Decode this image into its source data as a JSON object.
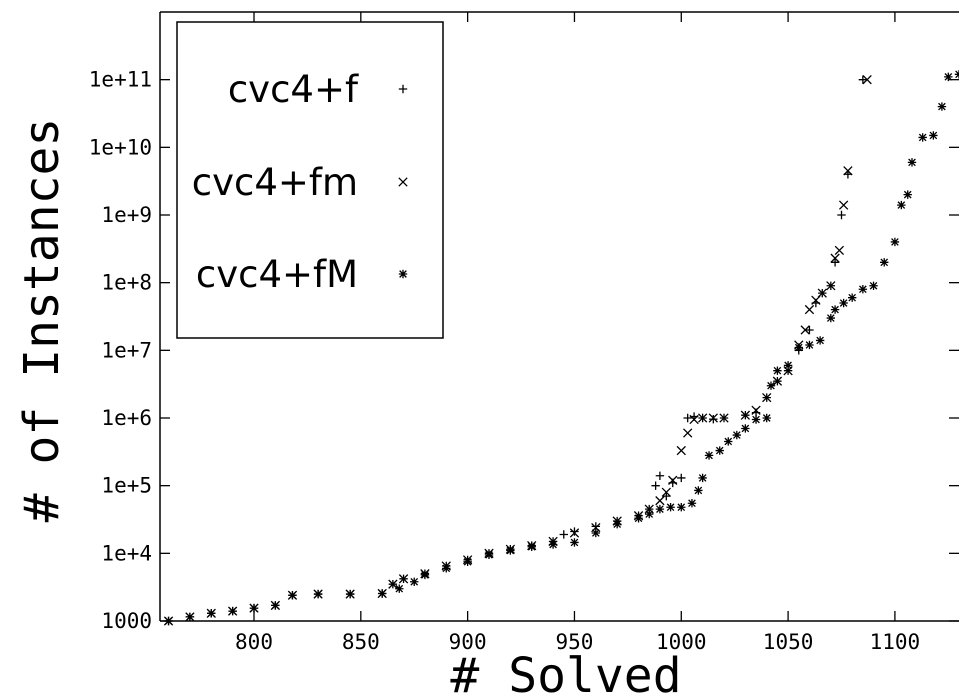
{
  "chart_data": {
    "type": "scatter",
    "title": "",
    "xlabel": "# Solved",
    "ylabel": "# of Instances",
    "xlim": [
      756,
      1130
    ],
    "ylim": [
      1000,
      1000000000000
    ],
    "y_scale": "log",
    "grid": false,
    "legend_position": "top-left",
    "x_ticks": [
      800,
      850,
      900,
      950,
      1000,
      1050,
      1100
    ],
    "y_ticks": [
      {
        "value": 1000,
        "label": "1000"
      },
      {
        "value": 10000,
        "label": "1e+4"
      },
      {
        "value": 100000,
        "label": "1e+5"
      },
      {
        "value": 1000000,
        "label": "1e+6"
      },
      {
        "value": 10000000,
        "label": "1e+7"
      },
      {
        "value": 100000000,
        "label": "1e+8"
      },
      {
        "value": 1000000000,
        "label": "1e+9"
      },
      {
        "value": 10000000000,
        "label": "1e+10"
      },
      {
        "value": 100000000000,
        "label": "1e+11"
      }
    ],
    "series": [
      {
        "name": "cvc4+f",
        "marker": "plus",
        "points": [
          [
            760,
            1000
          ],
          [
            770,
            1150
          ],
          [
            780,
            1300
          ],
          [
            790,
            1400
          ],
          [
            800,
            1550
          ],
          [
            810,
            1700
          ],
          [
            818,
            2400
          ],
          [
            830,
            2500
          ],
          [
            845,
            2500
          ],
          [
            860,
            2550
          ],
          [
            865,
            3500
          ],
          [
            870,
            4200
          ],
          [
            880,
            5000
          ],
          [
            890,
            6500
          ],
          [
            900,
            8000
          ],
          [
            910,
            10000
          ],
          [
            920,
            11500
          ],
          [
            930,
            13000
          ],
          [
            940,
            15000
          ],
          [
            945,
            19000
          ],
          [
            950,
            21000
          ],
          [
            960,
            25000
          ],
          [
            970,
            30000
          ],
          [
            980,
            36000
          ],
          [
            985,
            45000
          ],
          [
            988,
            100000
          ],
          [
            990,
            140000
          ],
          [
            993,
            70000
          ],
          [
            996,
            110000
          ],
          [
            1000,
            130000
          ],
          [
            1003,
            1000000
          ],
          [
            1006,
            1050000
          ],
          [
            1010,
            1000000
          ],
          [
            1015,
            960000
          ],
          [
            1020,
            1000000
          ],
          [
            1030,
            1100000
          ],
          [
            1035,
            1200000
          ],
          [
            1040,
            2000000
          ],
          [
            1045,
            3500000
          ],
          [
            1050,
            5000000
          ],
          [
            1055,
            10000000
          ],
          [
            1060,
            20000000
          ],
          [
            1063,
            50000000
          ],
          [
            1066,
            70000000
          ],
          [
            1070,
            90000000
          ],
          [
            1072,
            200000000
          ],
          [
            1075,
            1000000000
          ],
          [
            1078,
            4000000000
          ],
          [
            1085,
            100000000000
          ]
        ]
      },
      {
        "name": "cvc4+fm",
        "marker": "cross",
        "points": [
          [
            760,
            1000
          ],
          [
            770,
            1150
          ],
          [
            780,
            1300
          ],
          [
            790,
            1400
          ],
          [
            800,
            1550
          ],
          [
            810,
            1700
          ],
          [
            818,
            2400
          ],
          [
            830,
            2500
          ],
          [
            845,
            2500
          ],
          [
            860,
            2550
          ],
          [
            865,
            3500
          ],
          [
            870,
            4200
          ],
          [
            880,
            5000
          ],
          [
            890,
            6500
          ],
          [
            900,
            8000
          ],
          [
            910,
            10000
          ],
          [
            920,
            11500
          ],
          [
            930,
            13000
          ],
          [
            940,
            15000
          ],
          [
            950,
            20000
          ],
          [
            960,
            24000
          ],
          [
            970,
            30000
          ],
          [
            980,
            36000
          ],
          [
            985,
            45000
          ],
          [
            990,
            60000
          ],
          [
            993,
            80000
          ],
          [
            996,
            120000
          ],
          [
            1000,
            330000
          ],
          [
            1003,
            600000
          ],
          [
            1006,
            950000
          ],
          [
            1010,
            1000000
          ],
          [
            1015,
            1000000
          ],
          [
            1020,
            1000000
          ],
          [
            1030,
            1100000
          ],
          [
            1035,
            1300000
          ],
          [
            1040,
            2000000
          ],
          [
            1045,
            3500000
          ],
          [
            1050,
            5000000
          ],
          [
            1055,
            12000000
          ],
          [
            1058,
            20000000
          ],
          [
            1060,
            40000000
          ],
          [
            1063,
            55000000
          ],
          [
            1066,
            70000000
          ],
          [
            1070,
            90000000
          ],
          [
            1072,
            230000000
          ],
          [
            1074,
            300000000
          ],
          [
            1076,
            1400000000
          ],
          [
            1078,
            4500000000
          ],
          [
            1087,
            100000000000
          ]
        ]
      },
      {
        "name": "cvc4+fM",
        "marker": "star",
        "points": [
          [
            760,
            1000
          ],
          [
            770,
            1150
          ],
          [
            780,
            1300
          ],
          [
            790,
            1400
          ],
          [
            800,
            1550
          ],
          [
            810,
            1700
          ],
          [
            818,
            2400
          ],
          [
            830,
            2500
          ],
          [
            845,
            2500
          ],
          [
            860,
            2550
          ],
          [
            868,
            3000
          ],
          [
            875,
            3800
          ],
          [
            880,
            4800
          ],
          [
            890,
            6000
          ],
          [
            900,
            7500
          ],
          [
            910,
            9500
          ],
          [
            920,
            11000
          ],
          [
            930,
            12500
          ],
          [
            940,
            13500
          ],
          [
            950,
            14500
          ],
          [
            960,
            20000
          ],
          [
            970,
            27000
          ],
          [
            980,
            33000
          ],
          [
            985,
            38000
          ],
          [
            990,
            45000
          ],
          [
            995,
            48000
          ],
          [
            1000,
            48000
          ],
          [
            1005,
            55000
          ],
          [
            1008,
            85000
          ],
          [
            1010,
            130000
          ],
          [
            1013,
            280000
          ],
          [
            1018,
            330000
          ],
          [
            1022,
            450000
          ],
          [
            1026,
            560000
          ],
          [
            1030,
            700000
          ],
          [
            1035,
            950000
          ],
          [
            1040,
            1000000
          ],
          [
            1042,
            3000000
          ],
          [
            1045,
            5000000
          ],
          [
            1050,
            6000000
          ],
          [
            1055,
            11000000
          ],
          [
            1060,
            12000000
          ],
          [
            1065,
            14000000
          ],
          [
            1070,
            30000000
          ],
          [
            1072,
            40000000
          ],
          [
            1076,
            50000000
          ],
          [
            1080,
            60000000
          ],
          [
            1085,
            80000000
          ],
          [
            1090,
            90000000
          ],
          [
            1095,
            200000000
          ],
          [
            1100,
            400000000
          ],
          [
            1103,
            1400000000
          ],
          [
            1106,
            2000000000
          ],
          [
            1108,
            6000000000
          ],
          [
            1113,
            14000000000
          ],
          [
            1118,
            15000000000
          ],
          [
            1122,
            40000000000
          ],
          [
            1125,
            110000000000
          ],
          [
            1130,
            120000000000
          ]
        ]
      }
    ]
  }
}
